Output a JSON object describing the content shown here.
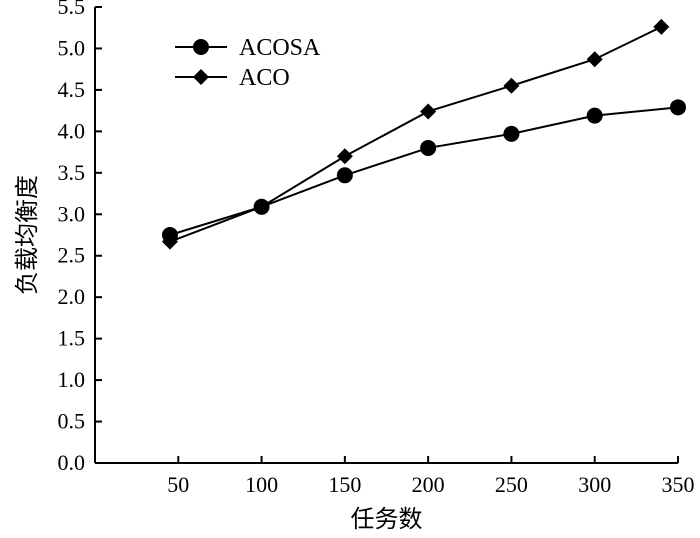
{
  "chart_data": {
    "type": "line",
    "title": "",
    "xlabel": "任务数",
    "ylabel": "负载均衡度",
    "x": [
      50,
      100,
      150,
      200,
      250,
      300,
      350
    ],
    "x_tick_labels": [
      "50",
      "100",
      "150",
      "200",
      "250",
      "300",
      "350"
    ],
    "xlim": [
      0,
      350
    ],
    "ylim": [
      0.0,
      5.5
    ],
    "y_ticks": [
      0.0,
      0.5,
      1.0,
      1.5,
      2.0,
      2.5,
      3.0,
      3.5,
      4.0,
      4.5,
      5.0,
      5.5
    ],
    "y_tick_labels": [
      "0.0",
      "0.5",
      "1.0",
      "1.5",
      "2.0",
      "2.5",
      "3.0",
      "3.5",
      "4.0",
      "4.5",
      "5.0",
      "5.5"
    ],
    "grid": false,
    "legend_position": "top-left",
    "series": [
      {
        "name": "ACOSA",
        "marker": "circle",
        "color": "#000000",
        "points": [
          [
            45,
            2.75
          ],
          [
            100,
            3.09
          ],
          [
            150,
            3.47
          ],
          [
            200,
            3.8
          ],
          [
            250,
            3.97
          ],
          [
            300,
            4.19
          ],
          [
            350,
            4.29
          ]
        ]
      },
      {
        "name": "ACO",
        "marker": "diamond",
        "color": "#000000",
        "points": [
          [
            45,
            2.67
          ],
          [
            100,
            3.09
          ],
          [
            150,
            3.7
          ],
          [
            200,
            4.24
          ],
          [
            250,
            4.55
          ],
          [
            300,
            4.87
          ],
          [
            340,
            5.26
          ]
        ]
      }
    ]
  }
}
